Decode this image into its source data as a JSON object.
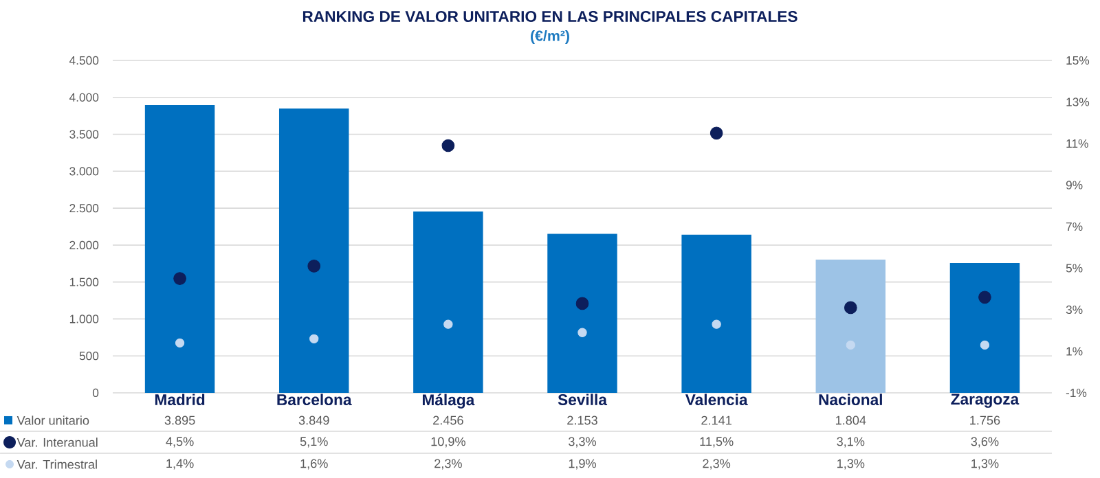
{
  "chart_data": {
    "type": "bar",
    "title": "RANKING DE VALOR UNITARIO EN LAS PRINCIPALES CAPITALES",
    "subtitle": "(€/m²)",
    "categories": [
      "Madrid",
      "Barcelona",
      "Málaga",
      "Sevilla",
      "Valencia",
      "Nacional",
      "Zaragoza"
    ],
    "series": [
      {
        "name": "Valor unitario",
        "color": "#0070c0",
        "colors": [
          "#0070c0",
          "#0070c0",
          "#0070c0",
          "#0070c0",
          "#0070c0",
          "#9dc3e6",
          "#0070c0"
        ],
        "values": [
          3895,
          3849,
          2456,
          2153,
          2141,
          1804,
          1756
        ],
        "value_labels": [
          "3.895",
          "3.849",
          "2.456",
          "2.153",
          "2.141",
          "1.804",
          "1.756"
        ]
      },
      {
        "name": "Var. Interanual",
        "type": "scatter",
        "axis": "y2",
        "color": "#0d1f5c",
        "values": [
          4.5,
          5.1,
          10.9,
          3.3,
          11.5,
          3.1,
          3.6
        ],
        "value_labels": [
          "4,5%",
          "5,1%",
          "10,9%",
          "3,3%",
          "11,5%",
          "3,1%",
          "3,6%"
        ]
      },
      {
        "name": "Var. Trimestral",
        "type": "scatter",
        "axis": "y2",
        "color": "#c5d9f1",
        "values": [
          1.4,
          1.6,
          2.3,
          1.9,
          2.3,
          1.3,
          1.3
        ],
        "value_labels": [
          "1,4%",
          "1,6%",
          "2,3%",
          "1,9%",
          "2,3%",
          "1,3%",
          "1,3%"
        ]
      }
    ],
    "ylim": [
      0,
      4500
    ],
    "yticks": [
      0,
      {
        "value": 500,
        "label": "500"
      },
      {
        "value": 1000,
        "label": "1.000"
      },
      {
        "value": 1500,
        "label": "1.500"
      },
      {
        "value": 2000,
        "label": "2.000"
      },
      {
        "value": 2500,
        "label": "2.500"
      },
      {
        "value": 3000,
        "label": "3.000"
      },
      {
        "value": 3500,
        "label": "3.500"
      },
      {
        "value": 4000,
        "label": "4.000"
      },
      {
        "value": 4500,
        "label": "4.500"
      }
    ],
    "y2lim": [
      -1,
      15
    ],
    "y2ticks": [
      {
        "value": -1,
        "label": "-1%"
      },
      {
        "value": 1,
        "label": "1%"
      },
      {
        "value": 3,
        "label": "3%"
      },
      {
        "value": 5,
        "label": "5%"
      },
      {
        "value": 7,
        "label": "7%"
      },
      {
        "value": 9,
        "label": "9%"
      },
      {
        "value": 11,
        "label": "11%"
      },
      {
        "value": 13,
        "label": "13%"
      },
      {
        "value": 15,
        "label": "15%"
      }
    ],
    "grid": "y",
    "legend": "bottom left",
    "marker": "circle"
  }
}
